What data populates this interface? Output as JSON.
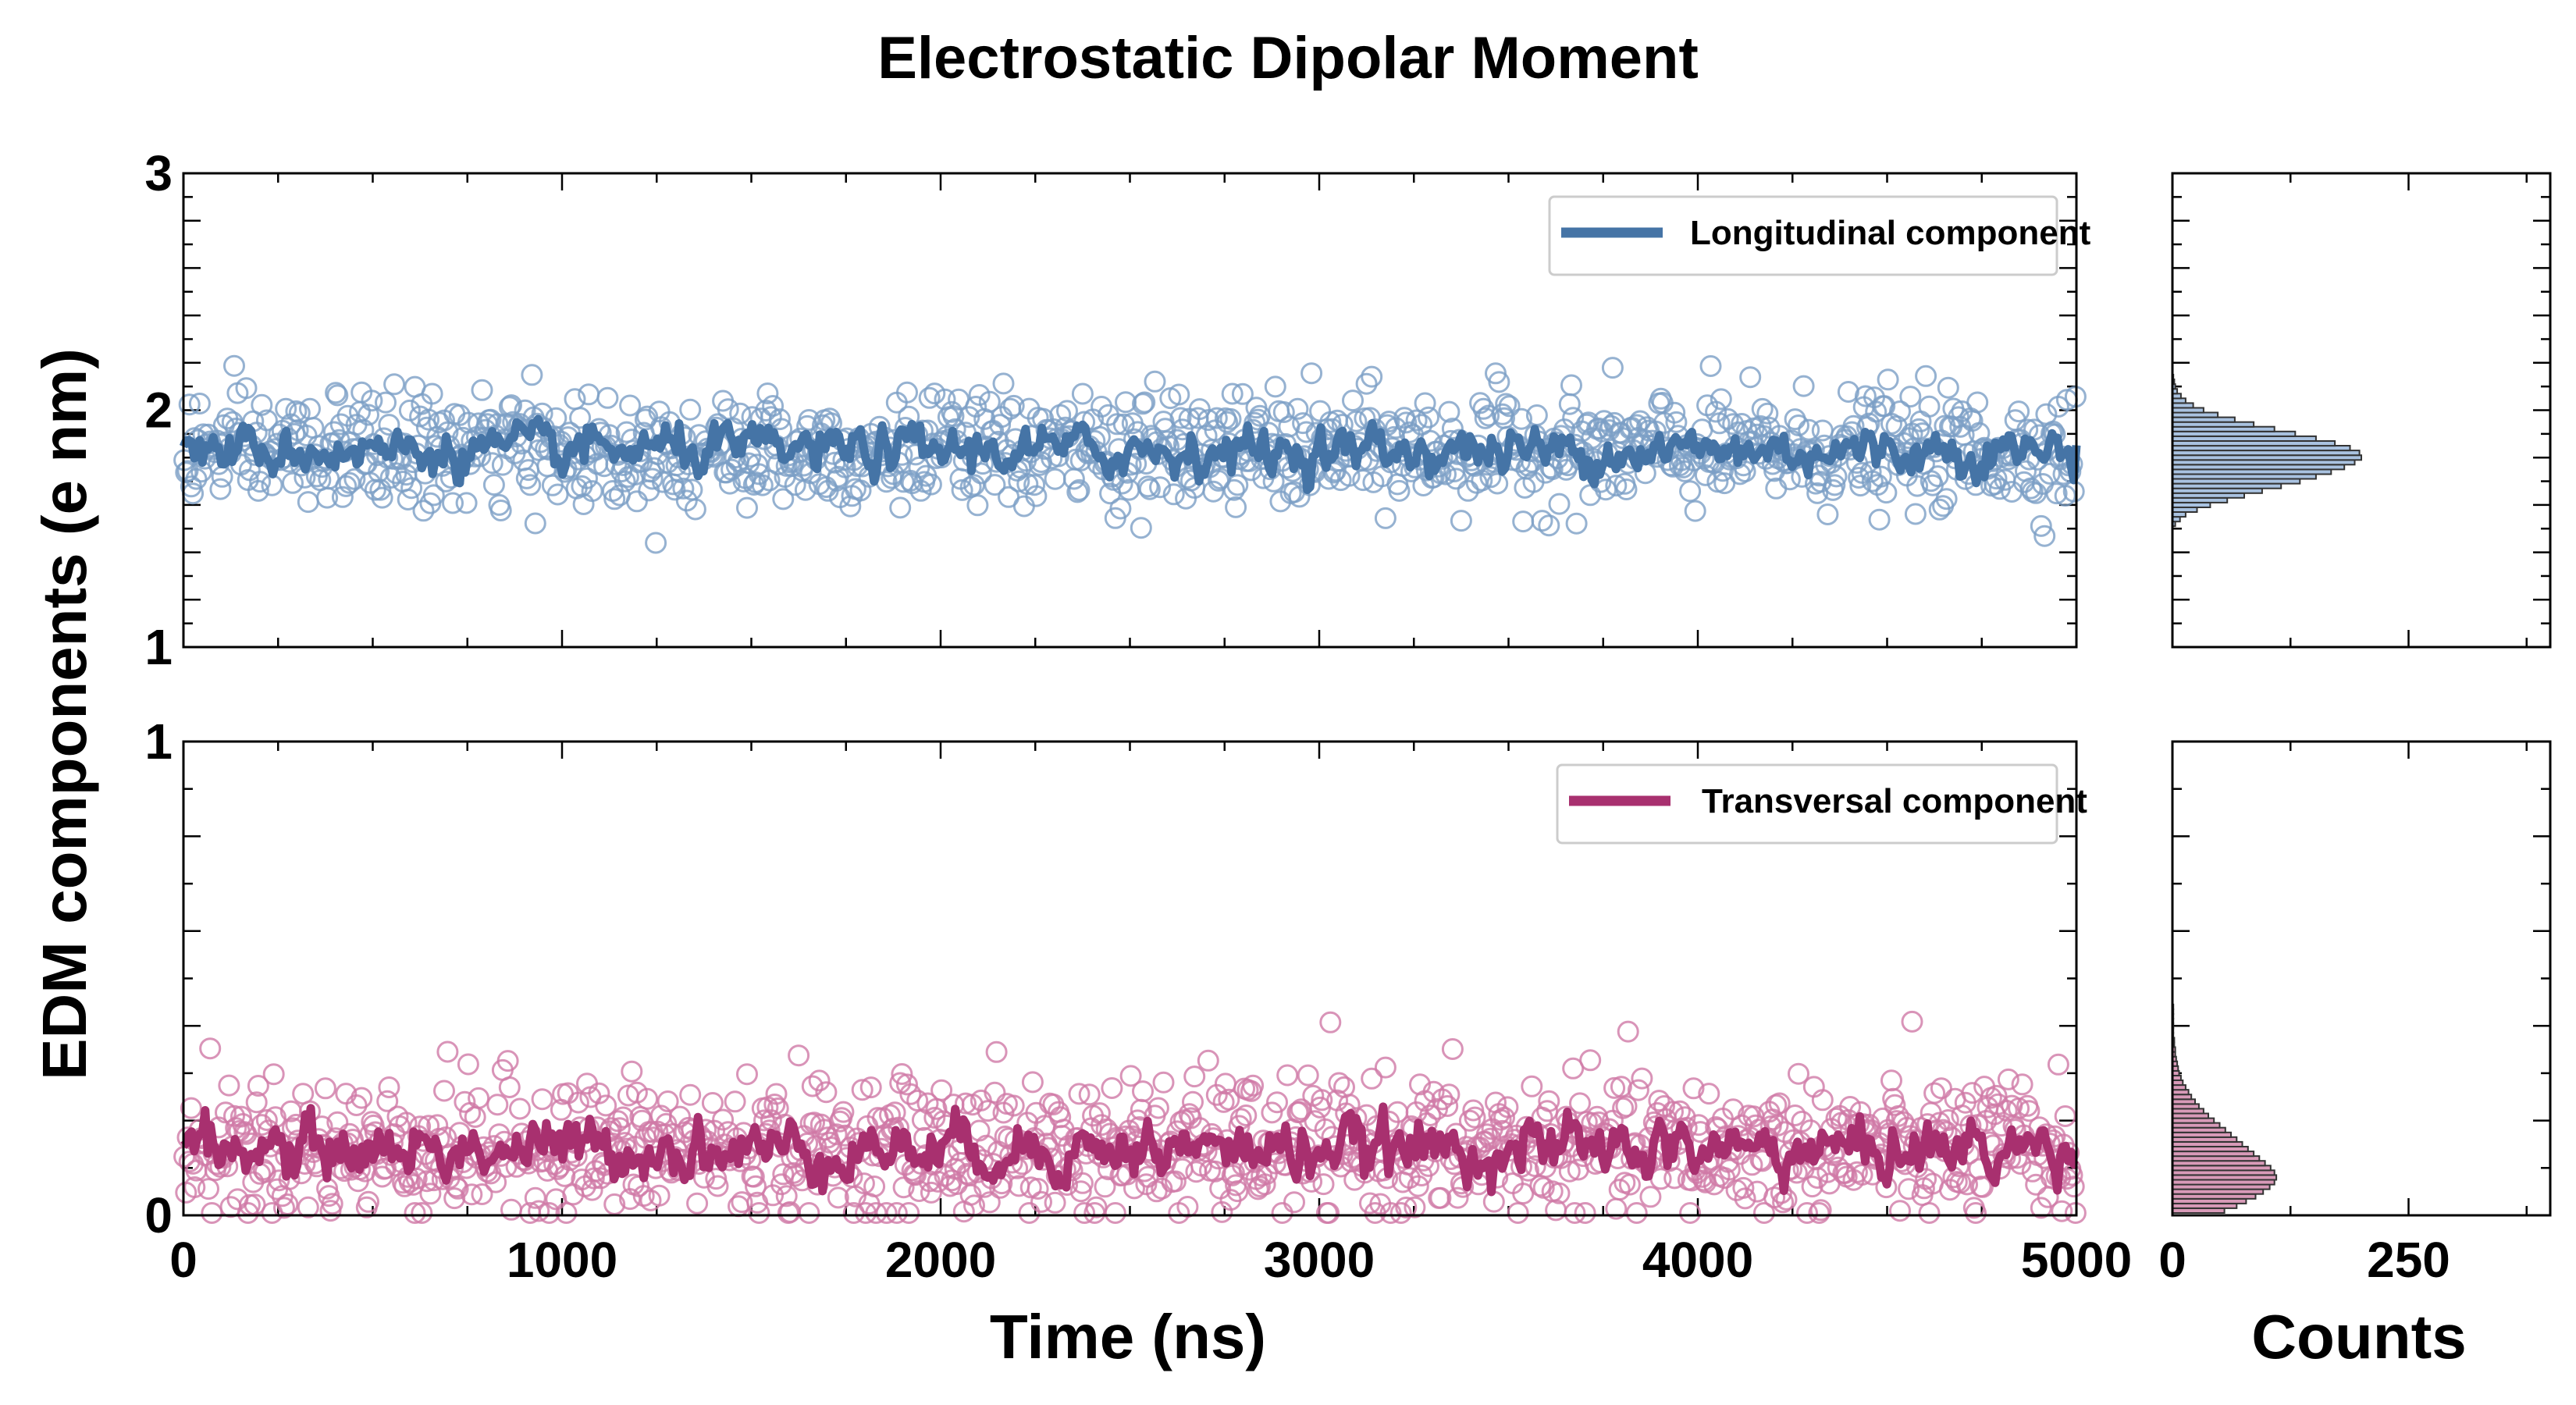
{
  "chart_data": {
    "title": "Electrostatic Dipolar Moment",
    "ylabel": "EDM components (e nm)",
    "xlabel_time": "Time (ns)",
    "xlabel_counts": "Counts",
    "xlim": [
      0,
      5000
    ],
    "xticks": [
      0,
      1000,
      2000,
      3000,
      4000,
      5000
    ],
    "xtick_labels": [
      "0",
      "1000",
      "2000",
      "3000",
      "4000",
      "5000"
    ],
    "hist_xlim": [
      0,
      400
    ],
    "hist_xticks": [
      0,
      250
    ],
    "hist_xtick_labels": [
      "0",
      "250"
    ],
    "panels": [
      {
        "name": "longitudinal",
        "type": "scatter+line",
        "ylim": [
          1,
          3
        ],
        "yticks": [
          1,
          2,
          3
        ],
        "ytick_labels": [
          "1",
          "2",
          "3"
        ],
        "minor_step": 0.2,
        "legend_label": "Longitudinal component",
        "legend_position": "top-right",
        "line_color": "#4574a6",
        "marker_color": "#7c9fc5",
        "mean": 1.83,
        "spread": 0.12,
        "hist_fill": "#a9c2e0",
        "histogram": {
          "bin_centers": [
            1.52,
            1.54,
            1.56,
            1.58,
            1.6,
            1.62,
            1.64,
            1.66,
            1.68,
            1.7,
            1.72,
            1.74,
            1.76,
            1.78,
            1.8,
            1.82,
            1.84,
            1.86,
            1.88,
            1.9,
            1.92,
            1.94,
            1.96,
            1.98,
            2.0,
            2.02,
            2.04,
            2.06,
            2.08,
            2.1,
            2.12,
            2.14
          ],
          "counts": [
            3,
            8,
            14,
            26,
            40,
            58,
            76,
            95,
            115,
            135,
            152,
            168,
            182,
            193,
            200,
            198,
            188,
            172,
            152,
            130,
            108,
            86,
            66,
            48,
            33,
            22,
            14,
            9,
            5,
            3,
            2,
            1
          ]
        }
      },
      {
        "name": "transversal",
        "type": "scatter+line",
        "ylim": [
          0,
          1
        ],
        "yticks": [
          0,
          1
        ],
        "ytick_labels": [
          "0",
          "1"
        ],
        "minor_step": 0.2,
        "legend_label": "Transversal component",
        "legend_position": "top-right",
        "line_color": "#a8306f",
        "marker_color": "#cf79a6",
        "mean": 0.14,
        "spread": 0.075,
        "hist_fill": "#d89ab8",
        "histogram": {
          "bin_centers": [
            0.01,
            0.02,
            0.03,
            0.04,
            0.05,
            0.06,
            0.07,
            0.08,
            0.09,
            0.1,
            0.11,
            0.12,
            0.13,
            0.14,
            0.15,
            0.16,
            0.17,
            0.18,
            0.19,
            0.2,
            0.21,
            0.22,
            0.23,
            0.24,
            0.25,
            0.26,
            0.27,
            0.28,
            0.29,
            0.3,
            0.31,
            0.32,
            0.33,
            0.34,
            0.35,
            0.36,
            0.37,
            0.38,
            0.39,
            0.4,
            0.41,
            0.42,
            0.43,
            0.44
          ],
          "counts": [
            55,
            68,
            78,
            88,
            96,
            103,
            108,
            110,
            108,
            104,
            98,
            92,
            86,
            80,
            74,
            68,
            62,
            56,
            50,
            44,
            38,
            33,
            28,
            24,
            20,
            17,
            14,
            11,
            9,
            7,
            6,
            5,
            4,
            3,
            3,
            2,
            2,
            1,
            1,
            1,
            1,
            1,
            1,
            1
          ]
        }
      }
    ]
  }
}
